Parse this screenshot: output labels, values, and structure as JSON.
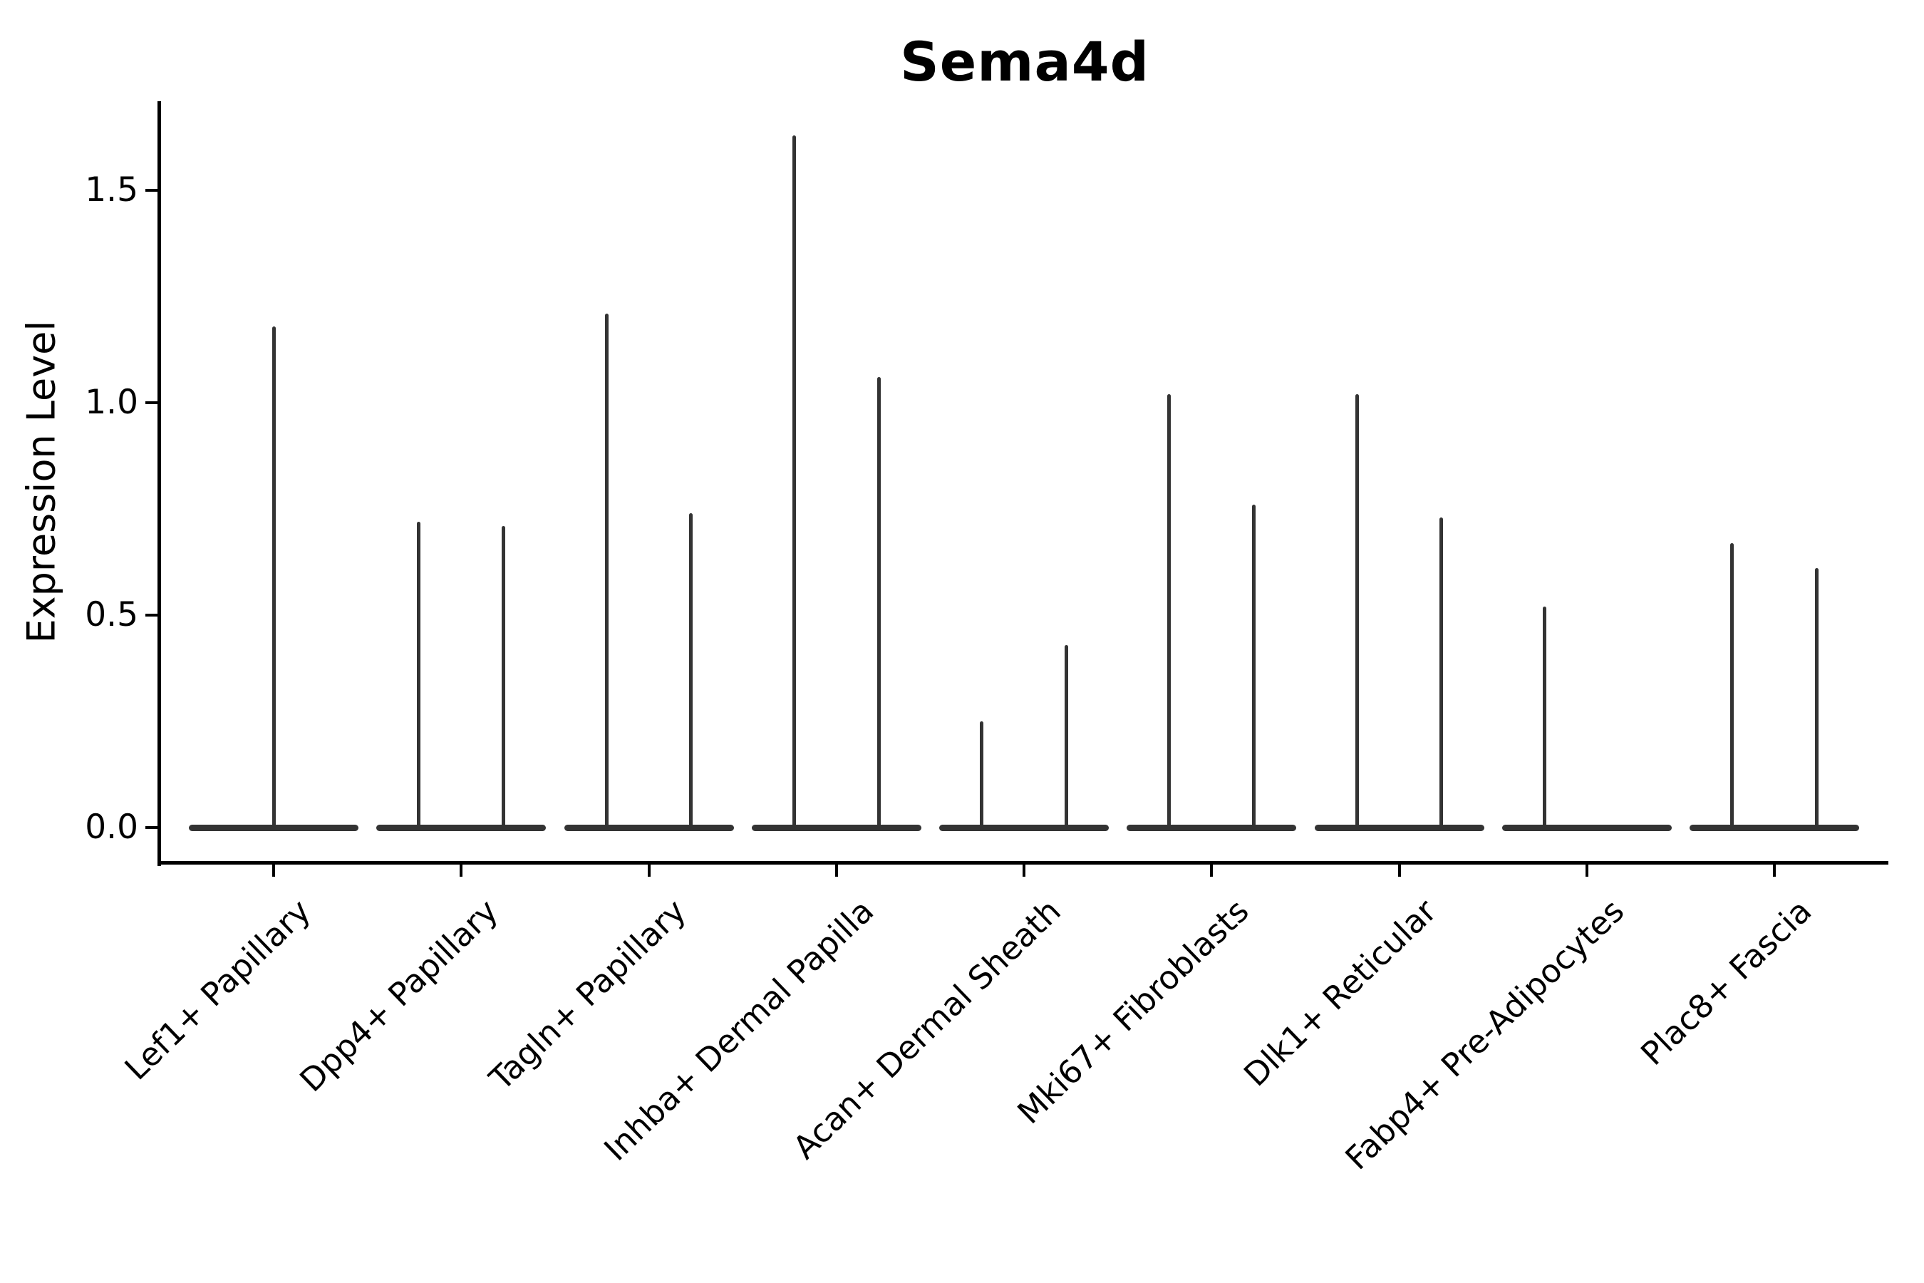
{
  "title": "Sema4d",
  "colors": {
    "violin": "#333333",
    "axes": "#000000",
    "text": "#000000",
    "background": "#ffffff"
  },
  "chart_data": {
    "type": "violin",
    "title": "Sema4d",
    "xlabel": "",
    "ylabel": "Expression Level",
    "ylim": [
      -0.08,
      1.71
    ],
    "yticks": [
      0.0,
      0.5,
      1.0,
      1.5
    ],
    "ytick_labels": [
      "0.0",
      "0.5",
      "1.0",
      "1.5"
    ],
    "grid": false,
    "legend_position": "none",
    "baseline_value": 0.0,
    "categories": [
      "Lef1+ Papillary",
      "Dpp4+ Papillary",
      "Tagln+ Papillary",
      "Inhba+ Dermal Papilla",
      "Acan+ Dermal Sheath",
      "Mki67+ Fibroblasts",
      "Dlk1+ Reticular",
      "Fabp4+ Pre-Adipocytes",
      "Plac8+ Fascia"
    ],
    "violins": [
      {
        "category": "Lef1+ Papillary",
        "parts": [
          {
            "offset": 0.0,
            "max": 1.18
          }
        ]
      },
      {
        "category": "Dpp4+ Papillary",
        "parts": [
          {
            "offset": -0.226,
            "max": 0.72
          },
          {
            "offset": 0.226,
            "max": 0.71
          }
        ]
      },
      {
        "category": "Tagln+ Papillary",
        "parts": [
          {
            "offset": -0.226,
            "max": 1.21
          },
          {
            "offset": 0.226,
            "max": 0.74
          }
        ]
      },
      {
        "category": "Inhba+ Dermal Papilla",
        "parts": [
          {
            "offset": -0.226,
            "max": 1.63
          },
          {
            "offset": 0.226,
            "max": 1.06
          }
        ]
      },
      {
        "category": "Acan+ Dermal Sheath",
        "parts": [
          {
            "offset": -0.226,
            "max": 0.25
          },
          {
            "offset": 0.226,
            "max": 0.43
          }
        ]
      },
      {
        "category": "Mki67+ Fibroblasts",
        "parts": [
          {
            "offset": -0.226,
            "max": 1.02
          },
          {
            "offset": 0.226,
            "max": 0.76
          }
        ]
      },
      {
        "category": "Dlk1+ Reticular",
        "parts": [
          {
            "offset": -0.226,
            "max": 1.02
          },
          {
            "offset": 0.226,
            "max": 0.73
          }
        ]
      },
      {
        "category": "Fabp4+ Pre-Adipocytes",
        "parts": [
          {
            "offset": -0.226,
            "max": 0.52
          }
        ]
      },
      {
        "category": "Plac8+ Fascia",
        "parts": [
          {
            "offset": -0.226,
            "max": 0.67
          },
          {
            "offset": 0.226,
            "max": 0.61
          }
        ]
      }
    ]
  }
}
